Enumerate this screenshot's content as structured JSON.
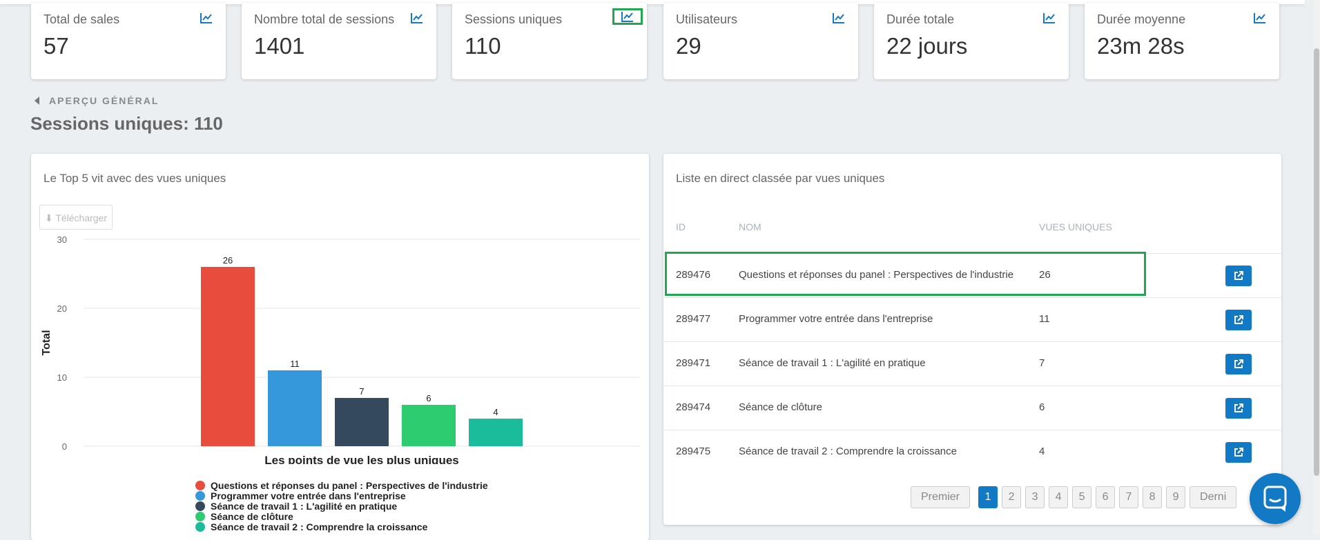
{
  "stats": [
    {
      "label": "Total de sales",
      "value": "57"
    },
    {
      "label": "Nombre total de sessions",
      "value": "1401"
    },
    {
      "label": "Sessions uniques",
      "value": "110"
    },
    {
      "label": "Utilisateurs",
      "value": "29"
    },
    {
      "label": "Durée totale",
      "value": "22 jours"
    },
    {
      "label": "Durée moyenne",
      "value": "23m 28s"
    }
  ],
  "nav": {
    "back_label": "APERÇU GÉNÉRAL"
  },
  "section_title": "Sessions uniques: 110",
  "chart_panel": {
    "title": "Le Top 5 vit avec des vues uniques",
    "download_label": "⬇ Télécharger"
  },
  "chart_data": {
    "type": "bar",
    "title": "",
    "xlabel": "Les points de vue les plus uniques",
    "ylabel": "Total",
    "ylim": [
      0,
      30
    ],
    "yticks": [
      "0",
      "10",
      "20",
      "30"
    ],
    "categories": [
      "Questions et réponses du panel : Perspectives de l'industrie",
      "Programmer votre entrée dans l'entreprise",
      "Séance de travail 1 : L'agilité en pratique",
      "Séance de clôture",
      "Séance de travail 2 : Comprendre la croissance"
    ],
    "values": [
      26,
      11,
      7,
      6,
      4
    ],
    "colors": [
      "#e74c3c",
      "#3498db",
      "#34495e",
      "#2ecc71",
      "#1abc9c"
    ],
    "grid": true,
    "legend": "bottom"
  },
  "table_panel": {
    "title": "Liste en direct classée par vues uniques",
    "headers": {
      "id": "ID",
      "name": "NOM",
      "views": "VUES UNIQUES"
    },
    "rows": [
      {
        "id": "289476",
        "name": "Questions et réponses du panel : Perspectives de l'industrie",
        "views": "26"
      },
      {
        "id": "289477",
        "name": "Programmer votre entrée dans l'entreprise",
        "views": "11"
      },
      {
        "id": "289471",
        "name": "Séance de travail 1 : L'agilité en pratique",
        "views": "7"
      },
      {
        "id": "289474",
        "name": "Séance de clôture",
        "views": "6"
      },
      {
        "id": "289475",
        "name": "Séance de travail 2 : Comprendre la croissance",
        "views": "4"
      }
    ]
  },
  "pagination": {
    "first": "Premier",
    "pages": [
      "1",
      "2",
      "3",
      "4",
      "5",
      "6",
      "7",
      "8",
      "9"
    ],
    "last": "Derni",
    "active": "1"
  },
  "colors": {
    "accent": "#1279c5",
    "highlight": "#1fa84f"
  }
}
